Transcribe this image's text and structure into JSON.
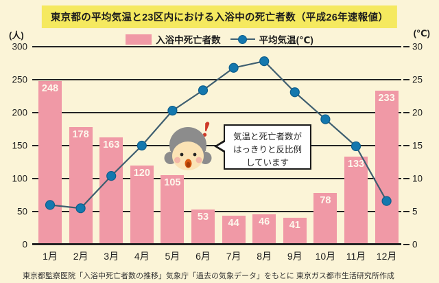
{
  "title": "東京都の平均気温と23区内における入浴中の死亡者数（平成26年速報値）",
  "axes": {
    "left_unit": "(人)",
    "right_unit": "(℃)"
  },
  "legend": {
    "deaths_label": "入浴中死亡者数",
    "temp_label": "平均気温(℃)"
  },
  "chart_data": {
    "type": "bar+line",
    "categories": [
      "1月",
      "2月",
      "3月",
      "4月",
      "5月",
      "6月",
      "7月",
      "8月",
      "9月",
      "10月",
      "11月",
      "12月"
    ],
    "series": [
      {
        "name": "入浴中死亡者数",
        "type": "bar",
        "axis": "left",
        "values": [
          248,
          178,
          163,
          120,
          105,
          53,
          44,
          46,
          41,
          78,
          133,
          233
        ]
      },
      {
        "name": "平均気温(℃)",
        "type": "line",
        "axis": "right",
        "values": [
          6.0,
          5.5,
          10.4,
          15.0,
          20.3,
          23.4,
          26.8,
          27.8,
          23.1,
          19.0,
          14.9,
          6.6
        ]
      }
    ],
    "left_axis": {
      "unit": "(人)",
      "min": 0,
      "max": 300,
      "step": 50
    },
    "right_axis": {
      "unit": "(℃)",
      "min": 0,
      "max": 30,
      "step": 5
    },
    "grid": true,
    "legend_position": "top",
    "title": "東京都の平均気温と23区内における入浴中の死亡者数（平成26年速報値）"
  },
  "annotation": {
    "lines": [
      "気温と死亡者数が",
      "はっきりと反比例",
      "しています"
    ]
  },
  "footer": "東京都監察医院「入浴中死亡者数の推移」気象庁「過去の気象データ」をもとに 東京ガス都市生活研究所作成",
  "colors": {
    "background": "#FBF4D7",
    "title_bg": "#F5E95F",
    "bar": "#F099A6",
    "line": "#3E5E70",
    "dot": "#1478AE",
    "dot_stroke": "#0E5E8C",
    "grid": "#232323"
  }
}
